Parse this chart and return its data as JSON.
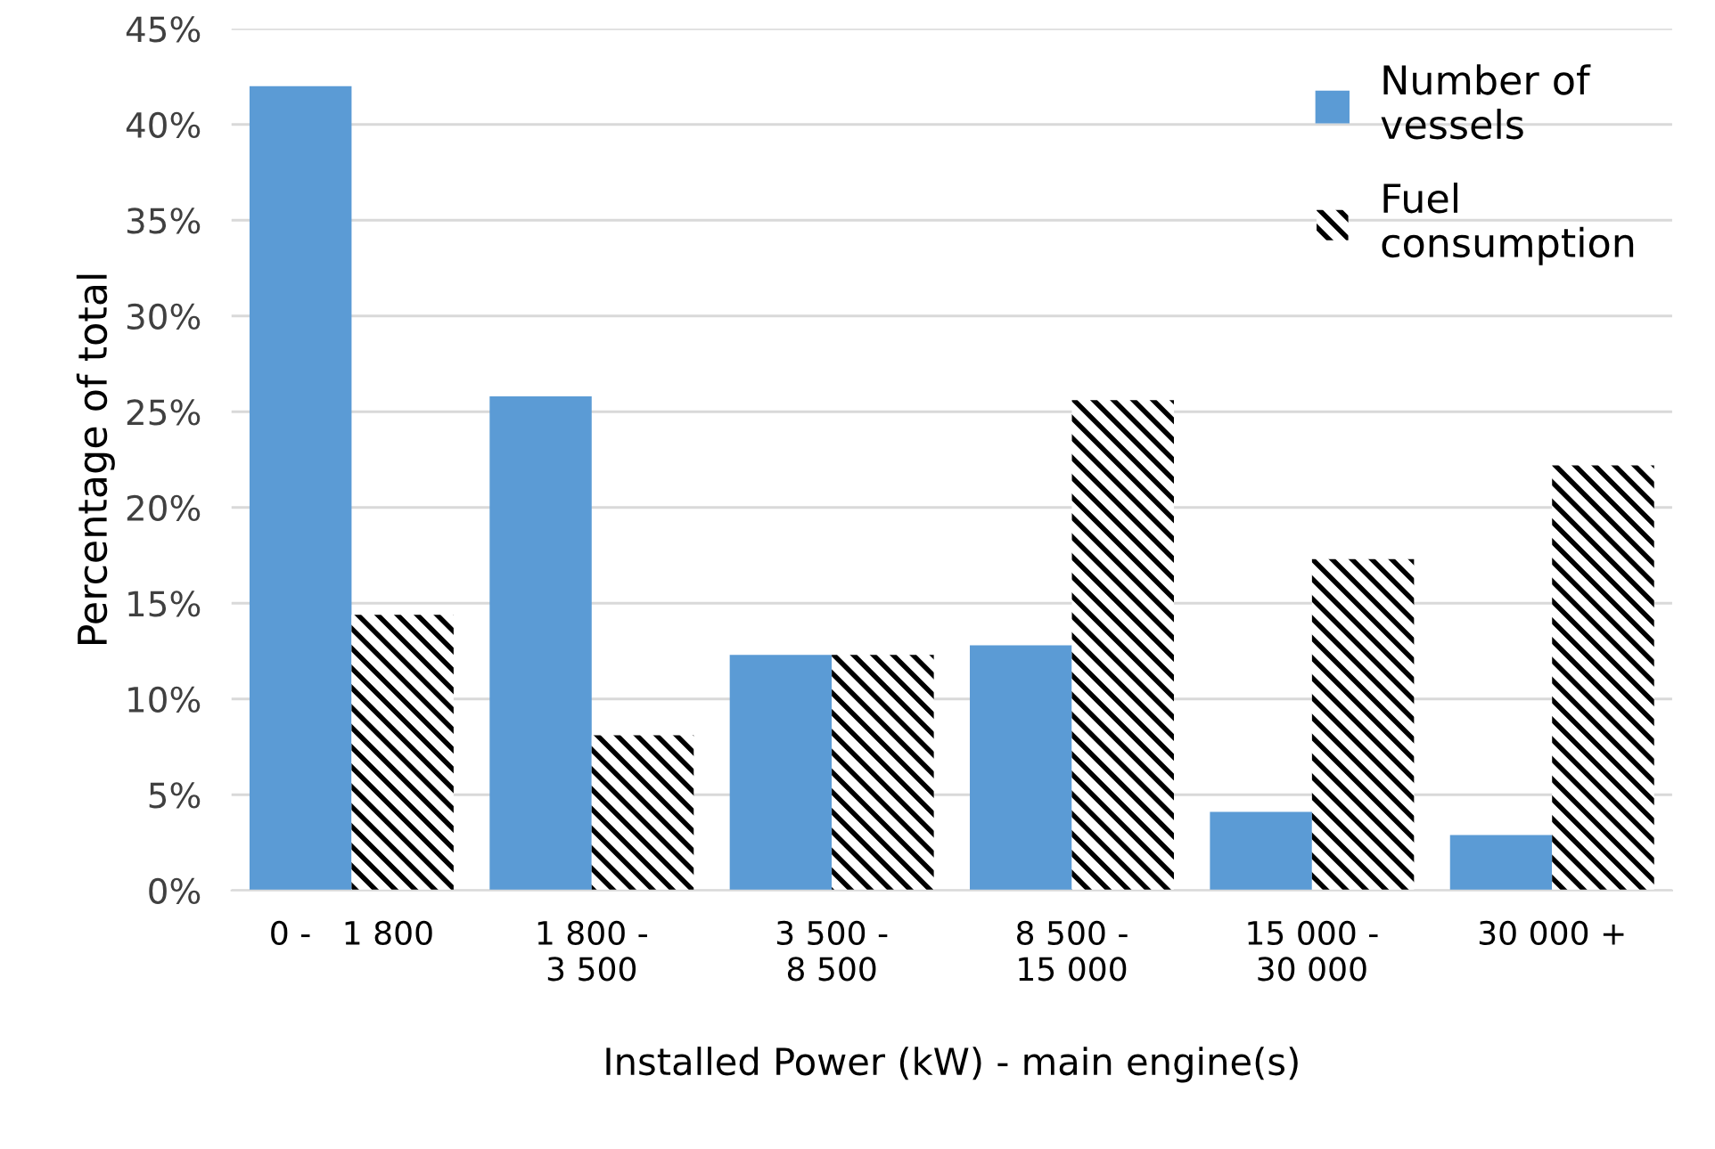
{
  "chart_data": {
    "type": "bar",
    "xlabel": "Installed Power (kW) - main engine(s)",
    "ylabel": "Percentage of total",
    "categories": [
      "0 -   1 800",
      "1 800 -\n3 500",
      "3 500 -\n8 500",
      "8 500 -\n15 000",
      "15 000 -\n30 000",
      "30 000 +"
    ],
    "series": [
      {
        "name": "Number of\nvessels",
        "color": "#5b9bd5",
        "values": [
          42,
          25.8,
          12.3,
          12.8,
          4.1,
          2.9
        ]
      },
      {
        "name": "Fuel\nconsumption",
        "color": "#000000",
        "values": [
          14.4,
          8.1,
          12.3,
          25.6,
          17.3,
          22.2
        ]
      }
    ],
    "ylim": [
      0,
      45
    ],
    "yticks": [
      {
        "value": 0,
        "label": "0%"
      },
      {
        "value": 5,
        "label": "5%"
      },
      {
        "value": 10,
        "label": "10%"
      },
      {
        "value": 15,
        "label": "15%"
      },
      {
        "value": 20,
        "label": "20%"
      },
      {
        "value": 25,
        "label": "25%"
      },
      {
        "value": 30,
        "label": "30%"
      },
      {
        "value": 35,
        "label": "35%"
      },
      {
        "value": 40,
        "label": "40%"
      },
      {
        "value": 45,
        "label": "45%"
      }
    ],
    "grid": "y",
    "legend": "top right"
  }
}
